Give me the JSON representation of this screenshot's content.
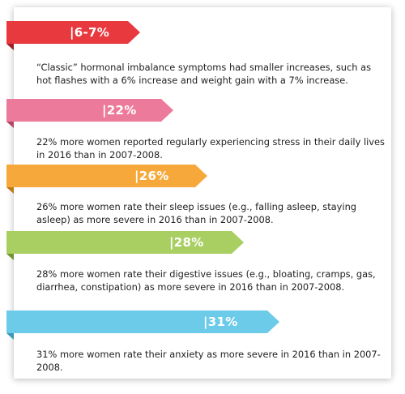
{
  "stats": [
    {
      "label": "|6-7%",
      "text": "“Classic” hormonal imbalance symptoms had smaller increases, such as hot flashes with a 6% increase and weight gain with a 7% increase.",
      "color": "#e8393f",
      "fold": "#9e1f25"
    },
    {
      "label": "|22%",
      "text": "22% more women reported regularly experiencing stress in their daily lives in 2016 than in 2007-2008.",
      "color": "#ec7a9a",
      "fold": "#b24868"
    },
    {
      "label": "|26%",
      "text": "26% more women rate their sleep issues (e.g., falling asleep, staying asleep) as more severe in 2016 than in 2007-2008.",
      "color": "#f6a93a",
      "fold": "#c07916"
    },
    {
      "label": "|28%",
      "text": "28% more women rate their digestive issues (e.g., bloating, cramps, gas, diarrhea, constipation) as more severe in 2016 than in 2007-2008.",
      "color": "#a9cf63",
      "fold": "#6f9432"
    },
    {
      "label": "|31%",
      "text": "31% more women rate their anxiety as more severe in 2016 than in 2007-2008.",
      "color": "#6ccbe9",
      "fold": "#3d97b6"
    }
  ]
}
